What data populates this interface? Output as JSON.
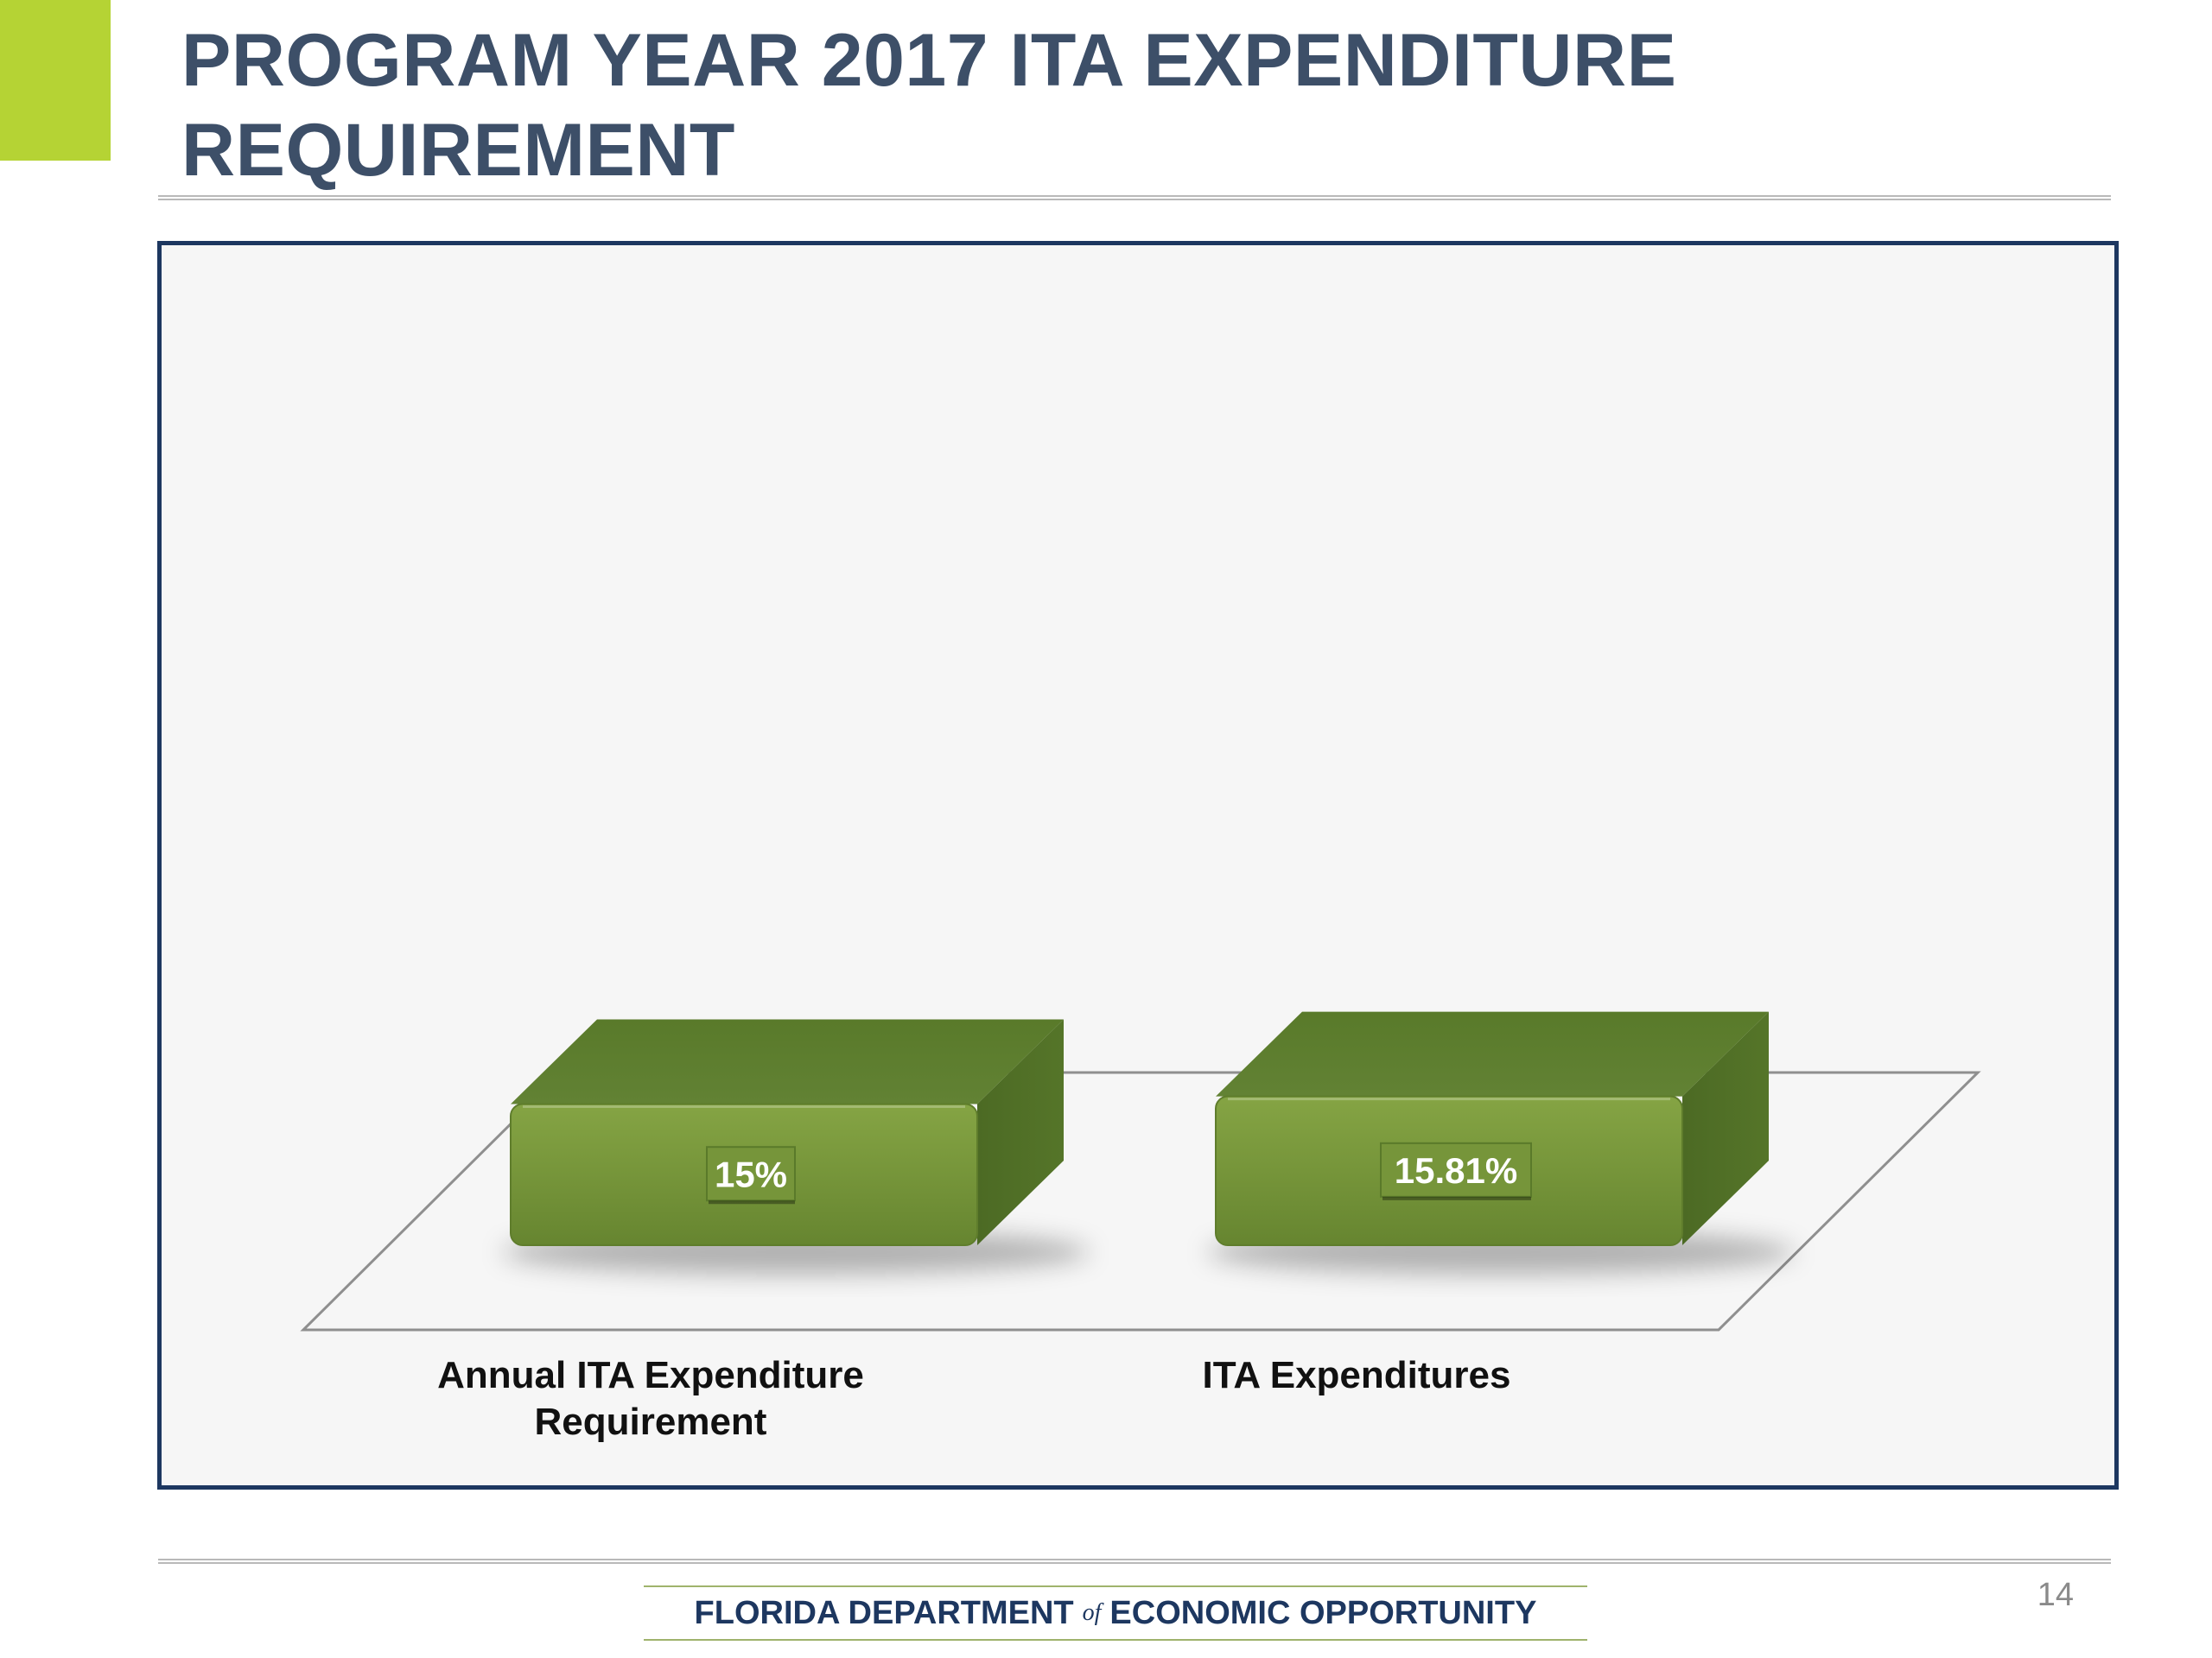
{
  "slide": {
    "title": "PROGRAM YEAR 2017 ITA EXPENDITURE REQUIREMENT",
    "page_number": "14",
    "colors": {
      "accent": "#b5d334",
      "title": "#3d4f68",
      "frame_border": "#1d3760",
      "bar": "#76953a"
    }
  },
  "footer": {
    "brand_part1": "FLORIDA DEPARTMENT",
    "brand_of": "of",
    "brand_part2": "ECONOMIC OPPORTUNITY"
  },
  "chart_data": {
    "type": "bar",
    "style": "3d",
    "categories": [
      "Annual ITA Expenditure Requirement",
      "ITA Expenditures"
    ],
    "values": [
      15,
      15.81
    ],
    "data_labels": [
      "15%",
      "15.81%"
    ],
    "unit": "%",
    "title": "",
    "xlabel": "",
    "ylabel": "",
    "ylim": [
      0,
      100
    ],
    "grid": false,
    "legend": "none"
  }
}
